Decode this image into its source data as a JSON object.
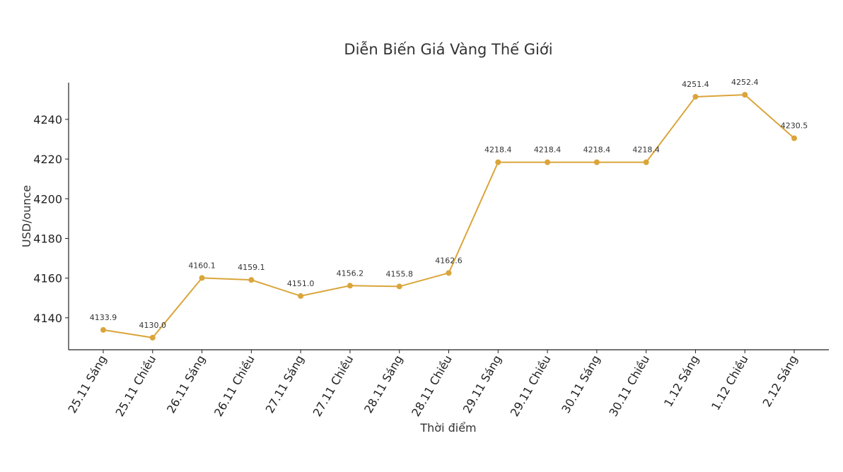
{
  "chart_data": {
    "type": "line",
    "title": "Diễn Biến Giá Vàng Thế Giới",
    "xlabel": "Thời điểm",
    "ylabel": "USD/ounce",
    "categories": [
      "25.11 Sáng",
      "25.11 Chiều",
      "26.11 Sáng",
      "26.11 Chiều",
      "27.11 Sáng",
      "27.11 Chiều",
      "28.11 Sáng",
      "28.11 Chiều",
      "29.11 Sáng",
      "29.11 Chiều",
      "30.11 Sáng",
      "30.11 Chiều",
      "1.12 Sáng",
      "1.12 Chiều",
      "2.12 Sáng"
    ],
    "values": [
      4133.9,
      4130.0,
      4160.1,
      4159.1,
      4151.0,
      4156.2,
      4155.8,
      4162.6,
      4218.4,
      4218.4,
      4218.4,
      4218.4,
      4251.4,
      4252.4,
      4230.5
    ],
    "data_labels": [
      "4133.9",
      "4130.0",
      "4160.1",
      "4159.1",
      "4151.0",
      "4156.2",
      "4155.8",
      "4162.6",
      "4218.4",
      "4218.4",
      "4218.4",
      "4218.4",
      "4251.4",
      "4252.4",
      "4230.5"
    ],
    "yticks": [
      4140,
      4160,
      4180,
      4200,
      4220,
      4240
    ],
    "ylim": [
      4123.9,
      4258.5
    ],
    "grid": false,
    "color": "#DAA53A"
  }
}
